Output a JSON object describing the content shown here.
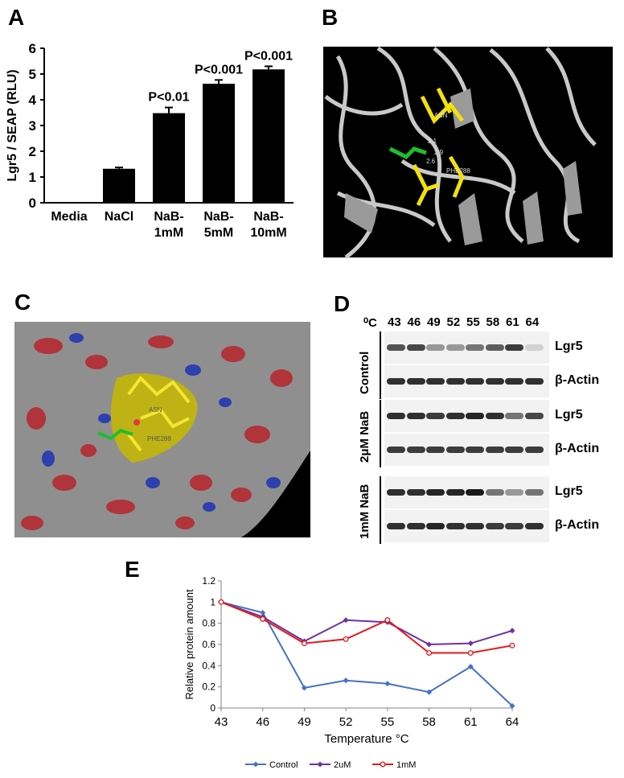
{
  "panels": {
    "a": "A",
    "b": "B",
    "c": "C",
    "d": "D",
    "e": "E"
  },
  "chart_data": [
    {
      "type": "bar",
      "panel": "A",
      "categories": [
        [
          "Media"
        ],
        [
          "NaCl"
        ],
        [
          "NaB-",
          "1mM"
        ],
        [
          "NaB-",
          "5mM"
        ],
        [
          "NaB-",
          "10mM"
        ]
      ],
      "values": [
        0,
        1.32,
        3.48,
        4.62,
        5.18
      ],
      "errors": [
        0,
        0.05,
        0.22,
        0.15,
        0.12
      ],
      "annotations": [
        "",
        "",
        "P<0.01",
        "P<0.001",
        "P<0.001"
      ],
      "ylabel": "Lgr5 / SEAP (RLU)",
      "ylim": [
        0,
        6
      ],
      "yticks": [
        "0",
        "1",
        "2",
        "3",
        "4",
        "5",
        "6"
      ],
      "bar_color": "#000000"
    },
    {
      "type": "line",
      "panel": "E",
      "x": [
        "43",
        "46",
        "49",
        "52",
        "55",
        "58",
        "61",
        "64"
      ],
      "series": [
        {
          "name": "Control",
          "values": [
            1.0,
            0.9,
            0.19,
            0.26,
            0.23,
            0.15,
            0.39,
            0.02
          ],
          "color": "#4472c4",
          "marker": "diamond"
        },
        {
          "name": "2uM",
          "values": [
            1.0,
            0.86,
            0.63,
            0.83,
            0.81,
            0.6,
            0.61,
            0.73
          ],
          "color": "#7030a0",
          "marker": "diamond"
        },
        {
          "name": "1mM",
          "values": [
            1.0,
            0.84,
            0.61,
            0.65,
            0.83,
            0.52,
            0.52,
            0.59
          ],
          "color": "#e41a1c",
          "marker": "circle"
        }
      ],
      "ylabel": "Relative protein amount",
      "xlabel": "Temperature °C",
      "ylim": [
        0,
        1.2
      ],
      "yticks": [
        "0",
        "0.2",
        "0.4",
        "0.6",
        "0.8",
        "1",
        "1.2"
      ],
      "legend_position": "bottom"
    }
  ],
  "western_blot": {
    "unit": "⁰C",
    "temperatures": [
      "43",
      "46",
      "49",
      "52",
      "55",
      "58",
      "61",
      "64"
    ],
    "groups": [
      {
        "label": "Control",
        "rows": [
          "Lgr5",
          "β-Actin"
        ]
      },
      {
        "label": "2μM NaB",
        "rows": [
          "Lgr5",
          "β-Actin"
        ]
      },
      {
        "label": "1mM NaB",
        "rows": [
          "Lgr5",
          "β-Actin"
        ]
      }
    ]
  },
  "structure_b": {
    "labels": [
      "ASN",
      "2.1",
      "2.9",
      "2.6",
      "PHE288"
    ]
  },
  "structure_c": {
    "labels": [
      "ASN",
      "PHE288"
    ]
  }
}
